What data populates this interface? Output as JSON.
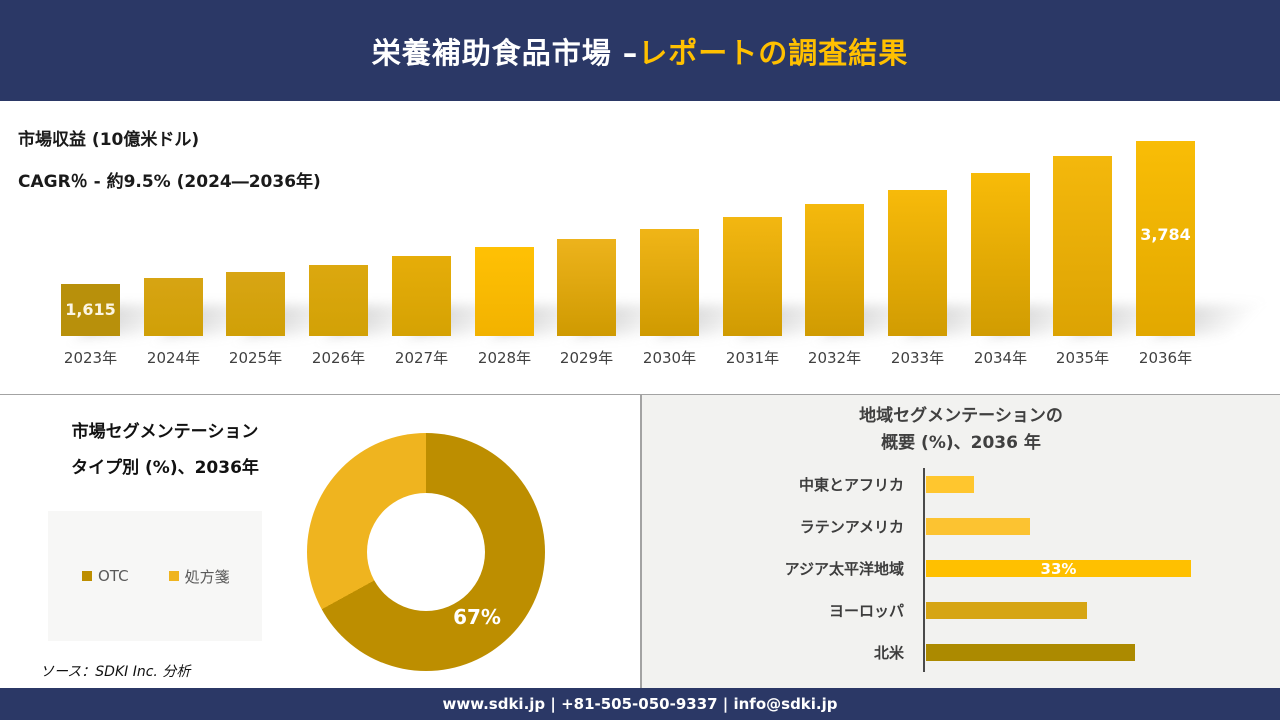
{
  "header": {
    "title_white": "栄養補助食品市場 –",
    "title_yellow": "レポートの調査結果",
    "bg": "#2B3866",
    "accent": "#FFC000"
  },
  "chart_data": [
    {
      "type": "bar",
      "title": "市場収益 (10億米ドル)",
      "subtitle": "CAGR％ - 約9.5% (2024―2036年)",
      "categories": [
        "2023年",
        "2024年",
        "2025年",
        "2026年",
        "2027年",
        "2028年",
        "2029年",
        "2030年",
        "2031年",
        "2032年",
        "2033年",
        "2034年",
        "2035年",
        "2036年"
      ],
      "values": [
        1615,
        1706,
        1797,
        1903,
        2040,
        2176,
        2298,
        2449,
        2631,
        2829,
        3041,
        3299,
        3557,
        3784
      ],
      "value_labels": {
        "first": "1,615",
        "last": "3,784"
      },
      "note": "Only 2023 (1,615) and 2036 (3,784) are labeled in the image; intermediate values estimated from bar heights.",
      "grid": false,
      "legend": false,
      "bar_colors": [
        {
          "top": "#B8900B",
          "bottom": "#B8900B"
        },
        {
          "top": "#D7A413",
          "bottom": "#D0A007"
        },
        {
          "top": "#D8A514",
          "bottom": "#D0A007"
        },
        {
          "top": "#DCA80F",
          "bottom": "#D2A106"
        },
        {
          "top": "#E6AD09",
          "bottom": "#D5A203"
        },
        {
          "top": "#FFC104",
          "bottom": "#F2B200"
        },
        {
          "top": "#EDB31C",
          "bottom": "#CF9A01"
        },
        {
          "top": "#F0B517",
          "bottom": "#CF9A01"
        },
        {
          "top": "#F3B711",
          "bottom": "#D09B02"
        },
        {
          "top": "#F5B90D",
          "bottom": "#D09B02"
        },
        {
          "top": "#F7BA0A",
          "bottom": "#D19C02"
        },
        {
          "top": "#F8BB08",
          "bottom": "#D19C02"
        },
        {
          "top": "#F4B80C",
          "bottom": "#DCA303"
        },
        {
          "top": "#F9BD06",
          "bottom": "#E2A800"
        }
      ]
    },
    {
      "type": "pie",
      "subtype": "donut",
      "title_line1": "市場セグメンテーション",
      "title_line2": "タイプ別 (%)、2036年",
      "labels": [
        "OTC",
        "処方箋"
      ],
      "values": [
        67,
        33
      ],
      "colors": [
        "#BD8E00",
        "#EFB41F"
      ],
      "shown_label": "67%",
      "legend_position": "left"
    },
    {
      "type": "bar-horizontal",
      "title_line1": "地域セグメンテーションの",
      "title_line2": "概要 (%)、2036 年",
      "categories": [
        "中東とアフリカ",
        "ラテンアメリカ",
        "アジア太平洋地域",
        "ヨーロッパ",
        "北米"
      ],
      "values": [
        6,
        13,
        33,
        20,
        26
      ],
      "colors": [
        "#FFC62E",
        "#FCC331",
        "#FFC000",
        "#D6A514",
        "#AC8A00"
      ],
      "labeled": {
        "アジア太平洋地域": "33%"
      },
      "note": "Only アジア太平洋地域 is labeled (33%); other values estimated from bar lengths."
    }
  ],
  "source": {
    "text": "ソース：SDKI Inc. 分析"
  },
  "footer": {
    "text": "www.sdki.jp | +81-505-050-9337 | info@sdki.jp",
    "bg": "#2B3866"
  }
}
